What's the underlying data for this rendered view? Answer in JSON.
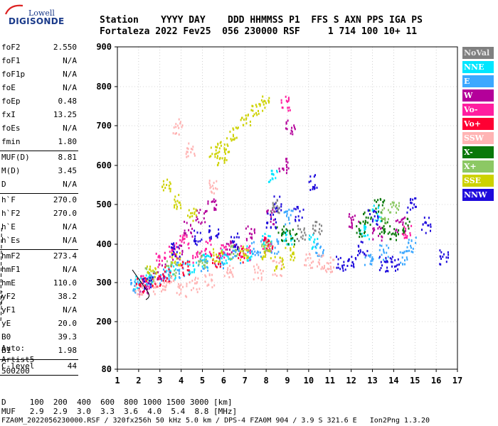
{
  "logo": {
    "brand": "Lowell",
    "product": "DIGISONDE"
  },
  "header": {
    "line1": "Station    YYYY DAY    DDD HHMMSS P1  FFS S AXN PPS IGA PS",
    "line2": "Fortaleza 2022 Fev25  056 230000 RSF     1 714 100 10+ 11"
  },
  "params": {
    "group1": [
      {
        "name": "foF2",
        "value": "2.550"
      },
      {
        "name": "foF1",
        "value": "N/A"
      },
      {
        "name": "foF1p",
        "value": "N/A"
      },
      {
        "name": "foE",
        "value": "N/A"
      },
      {
        "name": "foEp",
        "value": "0.48"
      },
      {
        "name": "fxI",
        "value": "13.25"
      },
      {
        "name": "foEs",
        "value": "N/A"
      },
      {
        "name": "fmin",
        "value": "1.80"
      }
    ],
    "group2": [
      {
        "name": "MUF(D)",
        "value": "8.81"
      },
      {
        "name": "M(D)",
        "value": "3.45"
      },
      {
        "name": "D",
        "value": "N/A"
      }
    ],
    "group3": [
      {
        "name": "h`F",
        "value": "270.0"
      },
      {
        "name": "h`F2",
        "value": "270.0"
      },
      {
        "name": "h`E",
        "value": "N/A"
      },
      {
        "name": "h`Es",
        "value": "N/A"
      }
    ],
    "group4": [
      {
        "name": "hmF2",
        "value": "273.4"
      },
      {
        "name": "hmF1",
        "value": "N/A"
      },
      {
        "name": "hmE",
        "value": "110.0"
      },
      {
        "name": "yF2",
        "value": "38.2"
      },
      {
        "name": "yF1",
        "value": "N/A"
      },
      {
        "name": "yE",
        "value": "20.0"
      },
      {
        "name": "B0",
        "value": "39.3"
      },
      {
        "name": "B1",
        "value": "1.98"
      }
    ],
    "group5": [
      {
        "name": "C-level",
        "value": "44"
      }
    ]
  },
  "autoscale": {
    "line1": "Auto:",
    "line2": "Artist5",
    "line3": "500200"
  },
  "footer": {
    "d_row": "D     100  200  400  600  800 1000 1500 3000 [km]",
    "muf_row": "MUF   2.9  2.9  3.0  3.3  3.6  4.0  5.4  8.8 [MHz]",
    "info": "FZA0M_2022056230000.RSF / 320fx256h 50 kHz 5.0 km / DPS-4 FZA0M 904 / 3.9 S 321.6 E   Ion2Png 1.3.20"
  },
  "legend": [
    {
      "label": "NoVal",
      "color": "#808080"
    },
    {
      "label": "NNE",
      "color": "#00e6ff"
    },
    {
      "label": "E",
      "color": "#3ca8ff"
    },
    {
      "label": "W",
      "color": "#b4009a"
    },
    {
      "label": "Vo-",
      "color": "#ff1ea0"
    },
    {
      "label": "Vo+",
      "color": "#ff0033"
    },
    {
      "label": "SSW",
      "color": "#ffb4b4"
    },
    {
      "label": "X-",
      "color": "#0a780a"
    },
    {
      "label": "X+",
      "color": "#8cc864"
    },
    {
      "label": "SSE",
      "color": "#cdd200"
    },
    {
      "label": "NNW",
      "color": "#1e0adc"
    }
  ],
  "chart_data": {
    "type": "scatter",
    "title": "",
    "xlabel": "",
    "ylabel": "",
    "xlim": [
      1,
      17
    ],
    "ylim": [
      80,
      900
    ],
    "x_ticks": [
      "1",
      "2",
      "3",
      "4",
      "5",
      "6",
      "7",
      "8",
      "9",
      "10",
      "11",
      "12",
      "13",
      "14",
      "15",
      "16",
      "17"
    ],
    "y_ticks": [
      "80",
      "200",
      "300",
      "400",
      "500",
      "600",
      "700",
      "800",
      "900"
    ],
    "grid": true,
    "series": [
      {
        "name": "NNE",
        "color": "#00e6ff",
        "points": [
          [
            2.0,
            300
          ],
          [
            2.5,
            310
          ],
          [
            3.5,
            330
          ],
          [
            4.5,
            345
          ],
          [
            5.2,
            355
          ],
          [
            6.1,
            370
          ],
          [
            7.1,
            380
          ],
          [
            8.0,
            410
          ],
          [
            8.3,
            570
          ],
          [
            9.0,
            420
          ],
          [
            10.2,
            410
          ],
          [
            12.6,
            430
          ],
          [
            13.2,
            480
          ]
        ]
      },
      {
        "name": "E",
        "color": "#3ca8ff",
        "points": [
          [
            1.8,
            295
          ],
          [
            2.6,
            310
          ],
          [
            3.2,
            320
          ],
          [
            4.0,
            335
          ],
          [
            5.0,
            350
          ],
          [
            5.8,
            360
          ],
          [
            6.6,
            372
          ],
          [
            7.5,
            390
          ],
          [
            8.4,
            395
          ],
          [
            9.0,
            470
          ],
          [
            10.5,
            390
          ],
          [
            12.8,
            360
          ],
          [
            13.5,
            380
          ],
          [
            14.5,
            370
          ],
          [
            14.8,
            400
          ]
        ]
      },
      {
        "name": "W",
        "color": "#b4009a",
        "points": [
          [
            2.2,
            290
          ],
          [
            3.0,
            330
          ],
          [
            3.8,
            380
          ],
          [
            4.3,
            440
          ],
          [
            4.9,
            470
          ],
          [
            5.4,
            500
          ],
          [
            6.3,
            390
          ],
          [
            7.2,
            430
          ],
          [
            8.2,
            470
          ],
          [
            8.8,
            600
          ],
          [
            9.1,
            700
          ],
          [
            12.1,
            460
          ],
          [
            13.2,
            430
          ],
          [
            14.3,
            450
          ]
        ]
      },
      {
        "name": "Vo-",
        "color": "#ff1ea0",
        "points": [
          [
            2.3,
            300
          ],
          [
            3.0,
            360
          ],
          [
            3.6,
            390
          ],
          [
            4.1,
            410
          ],
          [
            4.7,
            370
          ],
          [
            5.3,
            395
          ],
          [
            6.0,
            380
          ],
          [
            7.0,
            380
          ],
          [
            8.0,
            400
          ],
          [
            8.9,
            760
          ],
          [
            14.6,
            430
          ]
        ]
      },
      {
        "name": "Vo+",
        "color": "#ff0033",
        "points": [
          [
            2.1,
            295
          ],
          [
            2.8,
            310
          ],
          [
            3.3,
            325
          ],
          [
            4.2,
            340
          ],
          [
            5.6,
            360
          ],
          [
            6.8,
            375
          ],
          [
            8.1,
            400
          ]
        ]
      },
      {
        "name": "SSW",
        "color": "#ffb4b4",
        "points": [
          [
            2.0,
            285
          ],
          [
            2.9,
            290
          ],
          [
            3.4,
            300
          ],
          [
            4.0,
            280
          ],
          [
            4.6,
            295
          ],
          [
            5.3,
            310
          ],
          [
            6.2,
            330
          ],
          [
            7.6,
            330
          ],
          [
            8.5,
            340
          ],
          [
            10.0,
            360
          ],
          [
            10.6,
            355
          ],
          [
            11.0,
            350
          ],
          [
            3.8,
            700
          ],
          [
            4.4,
            640
          ],
          [
            5.5,
            550
          ]
        ]
      },
      {
        "name": "X-",
        "color": "#0a780a",
        "points": [
          [
            8.7,
            430
          ],
          [
            9.2,
            420
          ],
          [
            12.4,
            440
          ],
          [
            12.7,
            470
          ],
          [
            13.3,
            500
          ],
          [
            13.5,
            445
          ],
          [
            14.0,
            430
          ],
          [
            14.6,
            450
          ]
        ]
      },
      {
        "name": "X+",
        "color": "#8cc864",
        "points": [
          [
            2.5,
            320
          ],
          [
            3.5,
            340
          ],
          [
            5.0,
            360
          ],
          [
            6.5,
            380
          ],
          [
            8.0,
            400
          ],
          [
            13.6,
            475
          ],
          [
            14.0,
            490
          ]
        ]
      },
      {
        "name": "SSE",
        "color": "#cdd200",
        "points": [
          [
            3.3,
            550
          ],
          [
            3.8,
            510
          ],
          [
            4.5,
            480
          ],
          [
            5.5,
            640
          ],
          [
            6.0,
            655
          ],
          [
            6.5,
            680
          ],
          [
            7.0,
            720
          ],
          [
            7.5,
            740
          ],
          [
            7.9,
            760
          ],
          [
            5.9,
            620
          ],
          [
            2.6,
            330
          ],
          [
            3.7,
            360
          ],
          [
            5.7,
            370
          ],
          [
            6.9,
            380
          ],
          [
            8.0,
            380
          ],
          [
            8.6,
            350
          ],
          [
            9.1,
            380
          ]
        ]
      },
      {
        "name": "NNW",
        "color": "#1e0adc",
        "points": [
          [
            2.4,
            300
          ],
          [
            3.7,
            390
          ],
          [
            4.8,
            420
          ],
          [
            5.5,
            430
          ],
          [
            6.5,
            410
          ],
          [
            8.2,
            460
          ],
          [
            8.5,
            505
          ],
          [
            9.5,
            480
          ],
          [
            10.2,
            560
          ],
          [
            11.5,
            350
          ],
          [
            12.0,
            350
          ],
          [
            12.5,
            390
          ],
          [
            13.0,
            470
          ],
          [
            13.5,
            350
          ],
          [
            14.0,
            350
          ],
          [
            14.8,
            500
          ],
          [
            15.5,
            450
          ],
          [
            16.3,
            370
          ]
        ]
      },
      {
        "name": "NoVal",
        "color": "#808080",
        "points": [
          [
            8.4,
            500
          ],
          [
            9.6,
            430
          ],
          [
            10.4,
            440
          ]
        ]
      }
    ]
  }
}
